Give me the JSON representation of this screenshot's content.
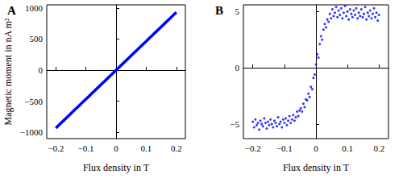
{
  "chart_data": [
    {
      "type": "line",
      "title": "A",
      "x_label": "Flux density in T",
      "y_label": "Magnetic moment in nA m²",
      "color": "#0000ff",
      "marker": "none",
      "grid": false,
      "xlim": [
        -0.23,
        0.23
      ],
      "ylim": [
        -1100,
        1050
      ],
      "xticks": [
        {
          "value": -0.2,
          "label": "−0.2"
        },
        {
          "value": -0.1,
          "label": "−0.1"
        },
        0,
        0.1,
        0.2
      ],
      "yticks": [
        {
          "value": -1000,
          "label": "−1000"
        },
        {
          "value": -500,
          "label": "−500"
        },
        0,
        500,
        1000
      ],
      "x": [
        -0.2,
        -0.19,
        -0.18,
        -0.17,
        -0.16,
        -0.15,
        -0.14,
        -0.13,
        -0.12,
        -0.11,
        -0.1,
        -0.09,
        -0.08,
        -0.07,
        -0.06,
        -0.05,
        -0.04,
        -0.03,
        -0.02,
        -0.01,
        0,
        0.01,
        0.02,
        0.03,
        0.04,
        0.05,
        0.06,
        0.07,
        0.08,
        0.09,
        0.1,
        0.11,
        0.12,
        0.13,
        0.14,
        0.15,
        0.16,
        0.17,
        0.18,
        0.19,
        0.2
      ],
      "values": [
        -930,
        -884,
        -837,
        -791,
        -744,
        -698,
        -651,
        -605,
        -558,
        -512,
        -465,
        -419,
        -372,
        -326,
        -279,
        -233,
        -186,
        -140,
        -93,
        -47,
        0,
        47,
        93,
        140,
        186,
        233,
        279,
        326,
        372,
        419,
        465,
        512,
        558,
        605,
        651,
        698,
        744,
        791,
        837,
        884,
        930
      ]
    },
    {
      "type": "scatter",
      "title": "B",
      "x_label": "Flux density in T",
      "color": "#0000ff",
      "marker": "circle",
      "grid": false,
      "xlim": [
        -0.23,
        0.23
      ],
      "ylim": [
        -6.3,
        5.6
      ],
      "xticks": [
        {
          "value": -0.2,
          "label": "−0.2"
        },
        {
          "value": -0.1,
          "label": "−0.1"
        },
        0,
        0.1,
        0.2
      ],
      "yticks": [
        {
          "value": -5,
          "label": "−5"
        },
        0,
        5
      ],
      "x": [
        -0.2,
        -0.196,
        -0.192,
        -0.188,
        -0.184,
        -0.18,
        -0.176,
        -0.172,
        -0.168,
        -0.164,
        -0.16,
        -0.156,
        -0.152,
        -0.148,
        -0.144,
        -0.14,
        -0.136,
        -0.132,
        -0.128,
        -0.124,
        -0.12,
        -0.116,
        -0.112,
        -0.108,
        -0.104,
        -0.1,
        -0.096,
        -0.092,
        -0.088,
        -0.084,
        -0.08,
        -0.076,
        -0.072,
        -0.068,
        -0.064,
        -0.06,
        -0.056,
        -0.052,
        -0.048,
        -0.044,
        -0.04,
        -0.036,
        -0.032,
        -0.028,
        -0.024,
        -0.02,
        -0.016,
        -0.012,
        -0.008,
        -0.004,
        0,
        0.004,
        0.008,
        0.012,
        0.016,
        0.02,
        0.024,
        0.028,
        0.032,
        0.036,
        0.04,
        0.044,
        0.048,
        0.052,
        0.056,
        0.06,
        0.064,
        0.068,
        0.072,
        0.076,
        0.08,
        0.084,
        0.088,
        0.092,
        0.096,
        0.1,
        0.104,
        0.108,
        0.112,
        0.116,
        0.12,
        0.124,
        0.128,
        0.132,
        0.136,
        0.14,
        0.144,
        0.148,
        0.152,
        0.156,
        0.16,
        0.164,
        0.168,
        0.172,
        0.176,
        0.18,
        0.184,
        0.188,
        0.192,
        0.196,
        0.2
      ],
      "values": [
        -4.8,
        -5.3,
        -4.6,
        -5.1,
        -4.9,
        -5.5,
        -4.7,
        -5.0,
        -5.2,
        -4.5,
        -4.9,
        -5.4,
        -4.8,
        -5.1,
        -4.6,
        -5.0,
        -5.3,
        -4.7,
        -4.9,
        -5.2,
        -4.4,
        -5.0,
        -4.8,
        -5.3,
        -4.6,
        -4.9,
        -4.5,
        -5.1,
        -4.7,
        -4.3,
        -4.9,
        -4.6,
        -4.2,
        -4.7,
        -4.4,
        -3.9,
        -4.3,
        -3.8,
        -3.6,
        -3.9,
        -3.2,
        -3.5,
        -2.8,
        -2.9,
        -2.3,
        -2.6,
        -1.7,
        -1.9,
        -0.9,
        -0.6,
        0.3,
        1.2,
        0.9,
        2.1,
        2.8,
        2.5,
        3.4,
        3.9,
        3.6,
        4.3,
        4.1,
        4.8,
        4.4,
        5.2,
        4.6,
        4.9,
        5.4,
        4.5,
        5.1,
        4.7,
        5.3,
        4.4,
        4.9,
        5.5,
        4.6,
        5.0,
        4.3,
        5.2,
        4.8,
        4.5,
        5.1,
        4.7,
        5.3,
        4.4,
        4.9,
        4.6,
        5.2,
        4.5,
        4.8,
        5.4,
        4.3,
        4.9,
        4.6,
        5.1,
        4.4,
        4.8,
        5.3,
        4.5,
        4.9,
        4.2,
        4.7
      ]
    }
  ]
}
